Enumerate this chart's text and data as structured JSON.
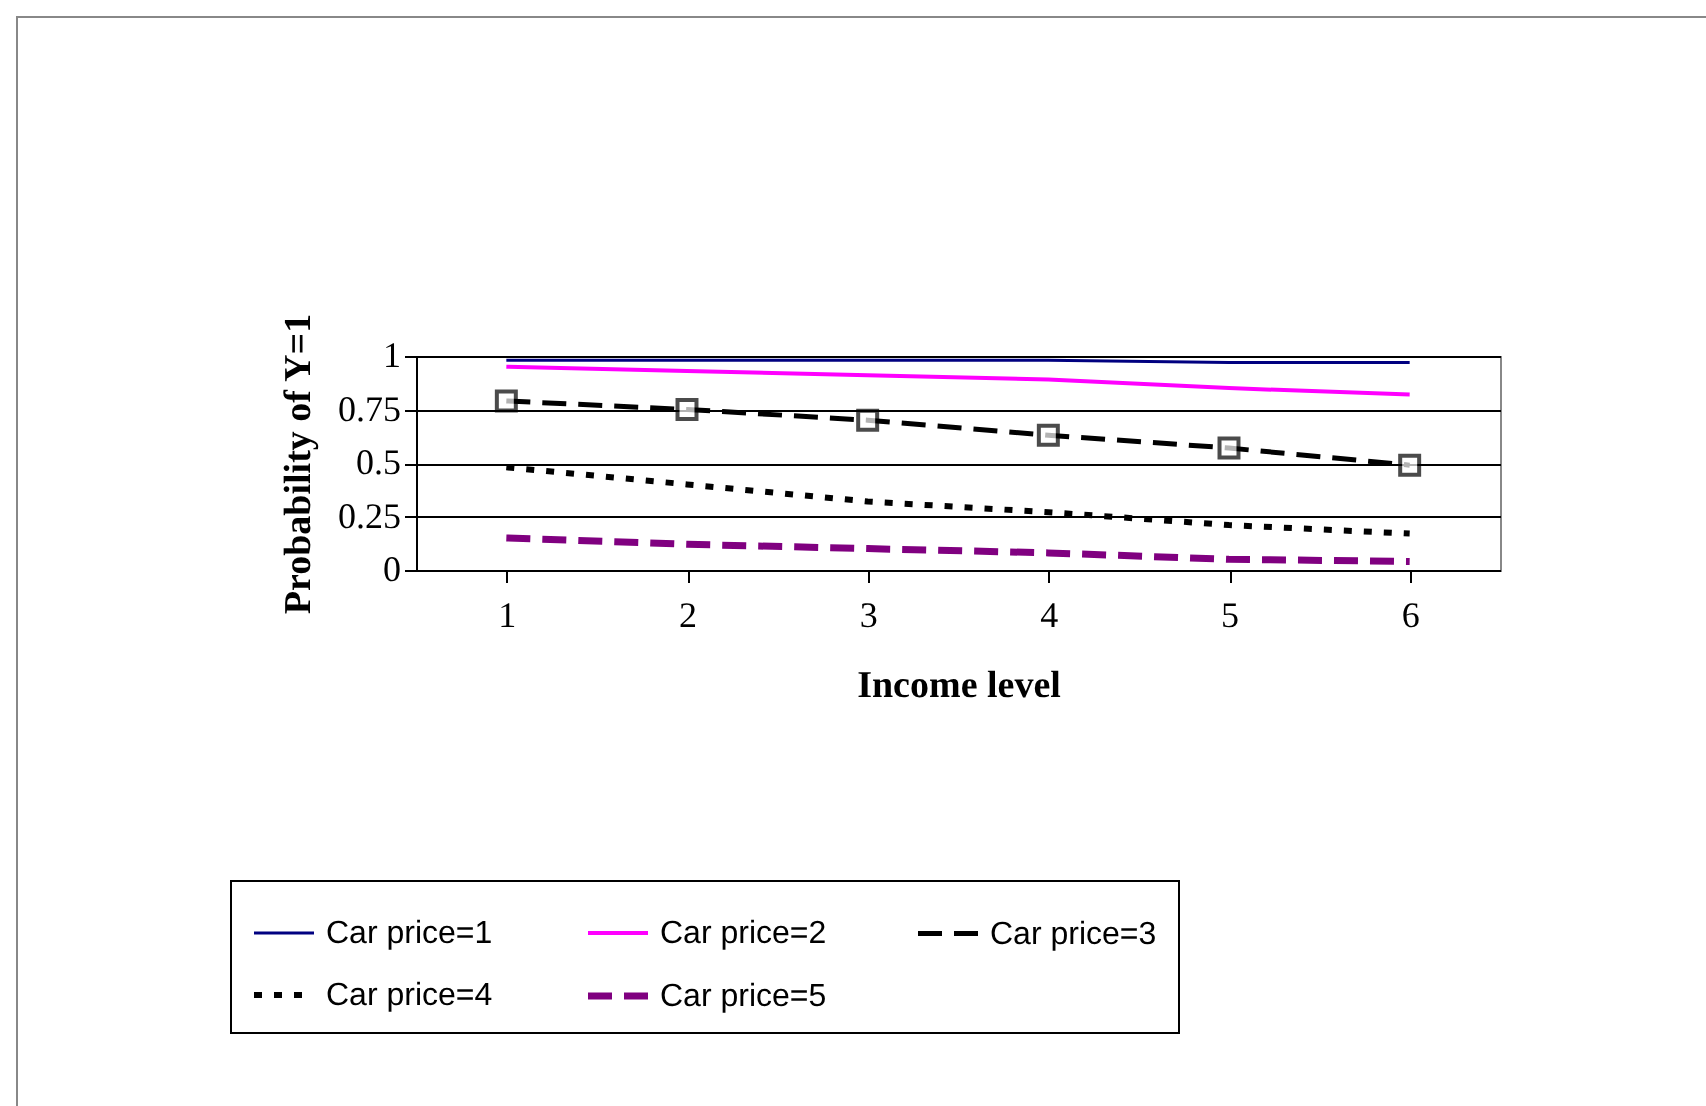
{
  "chart_data": {
    "type": "line",
    "xlabel": "Income level",
    "ylabel": "Probability of Y=1",
    "categories": [
      "1",
      "2",
      "3",
      "4",
      "5",
      "6"
    ],
    "ylim": [
      0,
      1
    ],
    "yticks": [
      0,
      0.25,
      0.5,
      0.75,
      1
    ],
    "grid": "y",
    "legend": "bottom",
    "series": [
      {
        "name": "Car price=1",
        "color": "#000080",
        "line_style": "solid",
        "marker": "none",
        "values": [
          0.98,
          0.98,
          0.98,
          0.98,
          0.97,
          0.97
        ]
      },
      {
        "name": "Car price=2",
        "color": "#ff00ff",
        "line_style": "solid",
        "marker": "none",
        "values": [
          0.95,
          0.93,
          0.91,
          0.89,
          0.85,
          0.82
        ]
      },
      {
        "name": "Car price=3",
        "color": "#000000",
        "line_style": "dashed",
        "marker": "square",
        "values": [
          0.79,
          0.75,
          0.7,
          0.63,
          0.57,
          0.49
        ]
      },
      {
        "name": "Car price=4",
        "color": "#000000",
        "line_style": "dotted",
        "marker": "none",
        "values": [
          0.48,
          0.4,
          0.32,
          0.27,
          0.21,
          0.17
        ]
      },
      {
        "name": "Car price=5",
        "color": "#800080",
        "line_style": "dashed",
        "marker": "none",
        "values": [
          0.15,
          0.12,
          0.1,
          0.08,
          0.05,
          0.04
        ]
      }
    ]
  }
}
